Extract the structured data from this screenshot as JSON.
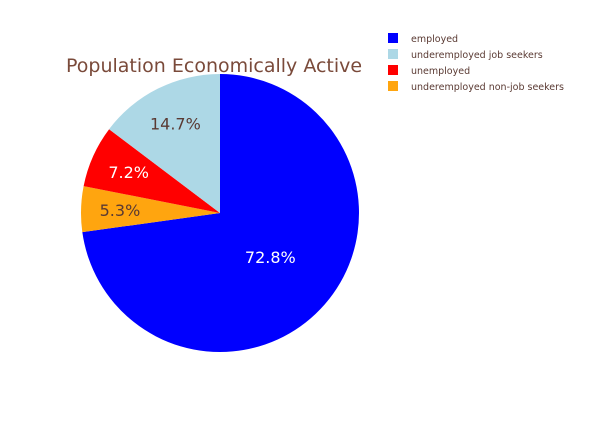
{
  "chart_data": {
    "type": "pie",
    "title": "Population Economically Active",
    "legend_position": "top-right",
    "slices": [
      {
        "label": "employed",
        "value": 72.8,
        "text": "72.8%",
        "color": "#0000ff",
        "text_color": "#ffffff"
      },
      {
        "label": "underemployed non-job seekers",
        "value": 5.3,
        "text": "5.3%",
        "color": "#ffa50f",
        "text_color": "#5a3a33"
      },
      {
        "label": "unemployed",
        "value": 7.2,
        "text": "7.2%",
        "color": "#ff0000",
        "text_color": "#ffffff"
      },
      {
        "label": "underemployed job seekers",
        "value": 14.7,
        "text": "14.7%",
        "color": "#add8e6",
        "text_color": "#5a3a33"
      }
    ],
    "legend": [
      {
        "label": "employed",
        "color": "#0000ff"
      },
      {
        "label": "underemployed job seekers",
        "color": "#add8e6"
      },
      {
        "label": "unemployed",
        "color": "#ff0000"
      },
      {
        "label": "underemployed non-job seekers",
        "color": "#ffa50f"
      }
    ]
  }
}
